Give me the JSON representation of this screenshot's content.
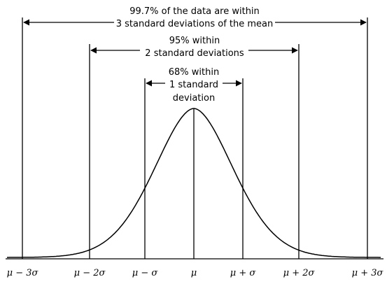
{
  "annotations": [
    {
      "lines": [
        "99.7% of the data are within",
        "3 standard deviations of the mean"
      ]
    },
    {
      "lines": [
        "95% within",
        "2 standard deviations"
      ]
    },
    {
      "lines": [
        "68% within",
        "1 standard",
        "deviation"
      ]
    }
  ],
  "x_labels": [
    "μ − 3σ",
    "μ − 2σ",
    "μ − σ",
    "μ",
    "μ + σ",
    "μ + 2σ",
    "μ + 3σ"
  ]
}
